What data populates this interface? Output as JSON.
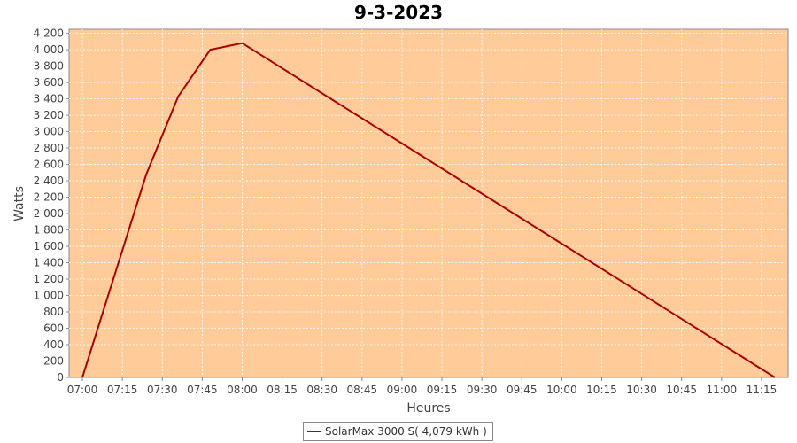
{
  "chart_data": {
    "type": "line",
    "title": "9-3-2023",
    "xlabel": "Heures",
    "ylabel": "Watts",
    "x_ticks": [
      "07:00",
      "07:15",
      "07:30",
      "07:45",
      "08:00",
      "08:15",
      "08:30",
      "08:45",
      "09:00",
      "09:15",
      "09:30",
      "09:45",
      "10:00",
      "10:15",
      "10:30",
      "10:45",
      "11:00",
      "11:15"
    ],
    "y_ticks": [
      "0",
      "200",
      "400",
      "600",
      "800",
      "1 000",
      "1 200",
      "1 400",
      "1 600",
      "1 800",
      "2 000",
      "2 200",
      "2 400",
      "2 600",
      "2 800",
      "3 000",
      "3 200",
      "3 400",
      "3 600",
      "3 800",
      "4 000",
      "4 200"
    ],
    "xlim": [
      "06:55",
      "11:25"
    ],
    "ylim": [
      0,
      4250
    ],
    "grid": true,
    "legend_position": "bottom-center",
    "colors": {
      "plot_background": "#ffcc99",
      "line": "#aa0000"
    },
    "series": [
      {
        "name": "SolarMax 3000 S( 4,079 kWh )",
        "x": [
          "07:00",
          "07:24",
          "07:36",
          "07:48",
          "08:00",
          "11:20"
        ],
        "y": [
          0,
          2480,
          3430,
          4000,
          4080,
          0
        ]
      }
    ]
  }
}
